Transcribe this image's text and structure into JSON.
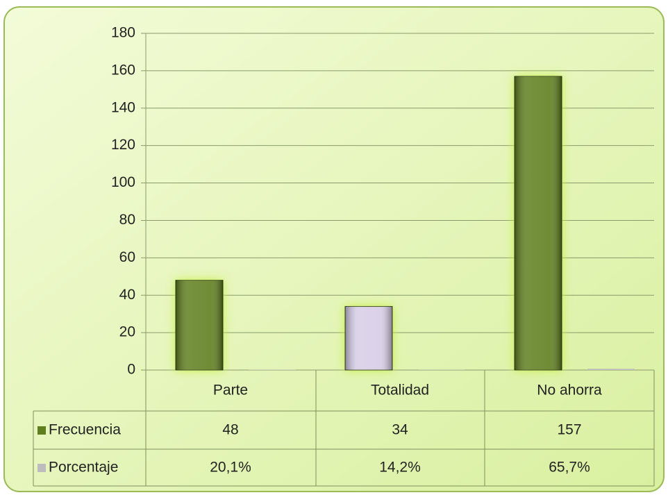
{
  "chart_data": {
    "type": "bar",
    "categories": [
      "Parte",
      "Totalidad",
      "No ahorra"
    ],
    "series": [
      {
        "name": "Frecuencia",
        "color": "#5f7f1f",
        "colors": [
          "#5f7f1f",
          "#d7cde6",
          "#5f7f1f"
        ],
        "values": [
          48,
          34,
          157
        ]
      },
      {
        "name": "Porcentaje",
        "color": "#bdbdbd",
        "values": [
          0.201,
          0.142,
          0.657
        ],
        "value_labels": [
          "20,1%",
          "14,2%",
          "65,7%"
        ]
      }
    ],
    "ylim": [
      0,
      180
    ],
    "yticks": [
      0,
      20,
      40,
      60,
      80,
      100,
      120,
      140,
      160,
      180
    ],
    "grid": true
  }
}
